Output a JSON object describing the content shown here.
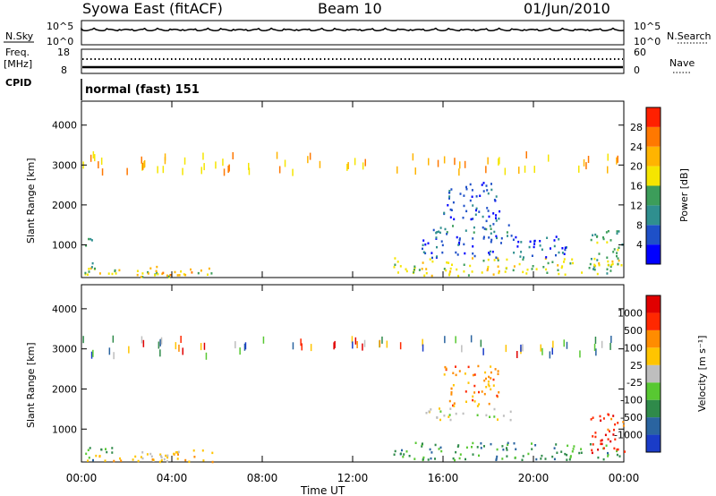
{
  "header": {
    "station": "Syowa East (fitACF)",
    "beam": "Beam 10",
    "date": "01/Jun/2010"
  },
  "noise_panel": {
    "left_label": "N.Sky",
    "left_ticks": [
      "10^5",
      "10^0"
    ],
    "right_label": "N.Search",
    "right_ticks": [
      "10^5",
      "10^0"
    ]
  },
  "freq_panel": {
    "left_label_1": "Freq.",
    "left_label_2": "[MHz]",
    "left_ticks": [
      "18",
      "8"
    ],
    "right_label": "Nave",
    "right_ticks": [
      "60",
      "0"
    ],
    "cpid_label": "CPID"
  },
  "cpid_text": "normal (fast) 151",
  "chart_data": [
    {
      "type": "heatmap",
      "title": "Power",
      "ylabel": "Slant Range [km]",
      "xlabel": "Time UT",
      "ylim": [
        180,
        4600
      ],
      "xlim_hours": [
        0,
        24
      ],
      "y_ticks": [
        "1000",
        "2000",
        "3000",
        "4000"
      ],
      "x_ticks": [
        "00:00",
        "04:00",
        "08:00",
        "12:00",
        "16:00",
        "20:00",
        "00:00"
      ],
      "colorbar": {
        "label": "Power [dB]",
        "tick_labels": [
          "4",
          "8",
          "12",
          "16",
          "20",
          "24",
          "28"
        ],
        "colors": [
          "#0000ff",
          "#1e50c8",
          "#2f8f8f",
          "#3c9d5a",
          "#f5e500",
          "#ffb400",
          "#ff7800",
          "#ff2000"
        ]
      },
      "regions": [
        {
          "t0": 0.1,
          "t1": 5.8,
          "r0": 200,
          "r1": 450,
          "level": 4
        },
        {
          "t0": 0.1,
          "t1": 0.5,
          "r0": 300,
          "r1": 1300,
          "level": 3
        },
        {
          "t0": 3.0,
          "t1": 5.5,
          "r0": 250,
          "r1": 500,
          "level": 5
        },
        {
          "t0": 13.8,
          "t1": 23.8,
          "r0": 250,
          "r1": 700,
          "level": 4
        },
        {
          "t0": 15.2,
          "t1": 19.0,
          "r0": 1250,
          "r1": 1550,
          "level": 2
        },
        {
          "t0": 16.0,
          "t1": 18.5,
          "r0": 1600,
          "r1": 2600,
          "level": 1
        },
        {
          "t0": 15.0,
          "t1": 21.5,
          "r0": 700,
          "r1": 1250,
          "level": 1
        },
        {
          "t0": 22.5,
          "t1": 24.0,
          "r0": 300,
          "r1": 1400,
          "level": 3
        }
      ]
    },
    {
      "type": "heatmap",
      "title": "Velocity",
      "ylabel": "Slant Range [km]",
      "xlabel": "Time UT",
      "ylim": [
        180,
        4600
      ],
      "xlim_hours": [
        0,
        24
      ],
      "y_ticks": [
        "1000",
        "2000",
        "3000",
        "4000"
      ],
      "x_ticks": [
        "00:00",
        "04:00",
        "08:00",
        "12:00",
        "16:00",
        "20:00",
        "00:00"
      ],
      "colorbar": {
        "label": "Velocity [m s⁻¹]",
        "tick_labels": [
          "1000",
          "500",
          "100",
          "25",
          "-25",
          "-100",
          "-500",
          "-1000"
        ],
        "colors": [
          "#1a3cc8",
          "#2a64a0",
          "#2f8a4a",
          "#58c832",
          "#bebebe",
          "#ffc400",
          "#ff8c00",
          "#ff2800",
          "#e00000"
        ]
      },
      "regions": [
        {
          "t0": 0.1,
          "t1": 5.8,
          "r0": 200,
          "r1": 450,
          "level": 5
        },
        {
          "t0": 3.0,
          "t1": 5.5,
          "r0": 250,
          "r1": 500,
          "level": 5
        },
        {
          "t0": 0.1,
          "t1": 1.5,
          "r0": 250,
          "r1": 600,
          "level": 2
        },
        {
          "t0": 13.8,
          "t1": 23.8,
          "r0": 250,
          "r1": 700,
          "level": 2
        },
        {
          "t0": 15.2,
          "t1": 19.0,
          "r0": 1250,
          "r1": 1550,
          "level": 4
        },
        {
          "t0": 16.0,
          "t1": 18.5,
          "r0": 1600,
          "r1": 2600,
          "level": 6
        },
        {
          "t0": 22.5,
          "t1": 24.0,
          "r0": 300,
          "r1": 1400,
          "level": 7
        }
      ]
    }
  ]
}
